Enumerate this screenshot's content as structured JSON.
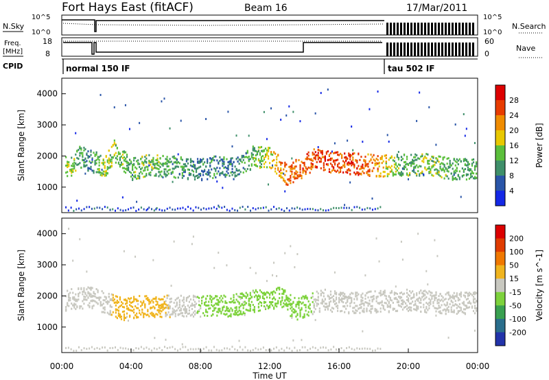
{
  "header": {
    "title": "Fort Hays East (fitACF)",
    "beam": "Beam 16",
    "date": "17/Mar/2011"
  },
  "top_panels": {
    "nsky_label": "N.Sky",
    "nsearch_label": "N.Search",
    "noise_tick_high": "10^5",
    "noise_tick_low": "10^0",
    "freq_label_line1": "Freq.",
    "freq_label_line2": "[MHz]",
    "freq_tick_high": "18",
    "freq_tick_low": "8",
    "nave_label": "Nave",
    "nave_tick_high": "60",
    "nave_tick_low": "0",
    "cpid_label": "CPID",
    "cpid_mode_1": "normal 150 IF",
    "cpid_mode_2": "tau 502 IF"
  },
  "panels": {
    "power": {
      "ylabel": "Slant Range [km]",
      "yticks": [
        "1000",
        "2000",
        "3000",
        "4000"
      ],
      "cbar_label": "Power [dB]",
      "cbar_ticks": [
        "4",
        "8",
        "12",
        "16",
        "20",
        "24",
        "28"
      ],
      "cbar_colors": [
        "#1428e6",
        "#2a55a8",
        "#3f8f6a",
        "#5bbf3c",
        "#e8c800",
        "#f08c00",
        "#e83c00",
        "#dd0000"
      ]
    },
    "velocity": {
      "ylabel": "Slant Range [km]",
      "yticks": [
        "1000",
        "2000",
        "3000",
        "4000"
      ],
      "cbar_label": "Velocity [m s^-1]",
      "cbar_ticks": [
        "200",
        "100",
        "50",
        "15",
        "-15",
        "-50",
        "-100",
        "-200"
      ],
      "cbar_colors": [
        "#2233aa",
        "#2a6e8c",
        "#39a050",
        "#7dd23c",
        "#c8c8c0",
        "#f0b41e",
        "#f07800",
        "#e03c00",
        "#dc0000"
      ]
    }
  },
  "xaxis": {
    "label": "Time UT",
    "ticks": [
      "00:00",
      "04:00",
      "08:00",
      "12:00",
      "16:00",
      "20:00",
      "00:00"
    ]
  },
  "chart_data": [
    {
      "type": "heatmap",
      "name": "Power",
      "xlabel": "Time UT",
      "ylabel": "Slant Range [km]",
      "xlim_hours": [
        0,
        24
      ],
      "ylim": [
        180,
        4500
      ],
      "colorbar": {
        "label": "Power [dB]",
        "range": [
          0,
          30
        ]
      },
      "x_hours_sampled": [
        0.5,
        1.0,
        1.5,
        2.5,
        3.0,
        4.0,
        5.0,
        8.0,
        9.0,
        10.0,
        11.0,
        12.0,
        13.0,
        14.5,
        15.5,
        16.5,
        17.5,
        18.2,
        19.5,
        21.0,
        22.5
      ],
      "echo_band_center_km": [
        1700,
        2000,
        1900,
        1700,
        2200,
        1600,
        1750,
        1600,
        1700,
        1600,
        2000,
        2000,
        1400,
        1900,
        1850,
        1800,
        1750,
        1700,
        1750,
        1750,
        1600
      ],
      "echo_band_power_db": [
        14,
        12,
        8,
        16,
        14,
        12,
        14,
        8,
        10,
        8,
        12,
        18,
        24,
        26,
        26,
        26,
        24,
        22,
        12,
        14,
        12
      ]
    },
    {
      "type": "heatmap",
      "name": "Velocity",
      "xlabel": "Time UT",
      "ylabel": "Slant Range [km]",
      "xlim_hours": [
        0,
        24
      ],
      "ylim": [
        180,
        4500
      ],
      "colorbar": {
        "label": "Velocity [m s^-1]",
        "range": [
          -250,
          250
        ]
      },
      "x_hours_sampled": [
        0.5,
        1.5,
        2.5,
        3.5,
        4.5,
        9.5,
        12.5,
        13.5,
        15.0,
        17.0,
        20.0,
        22.0
      ],
      "echo_band_center_km": [
        1900,
        2000,
        1800,
        1600,
        1700,
        1700,
        2000,
        1600,
        1900,
        1800,
        1900,
        1800
      ],
      "echo_band_velocity_ms": [
        0,
        0,
        0,
        -40,
        -40,
        40,
        40,
        40,
        0,
        0,
        0,
        0
      ]
    }
  ]
}
